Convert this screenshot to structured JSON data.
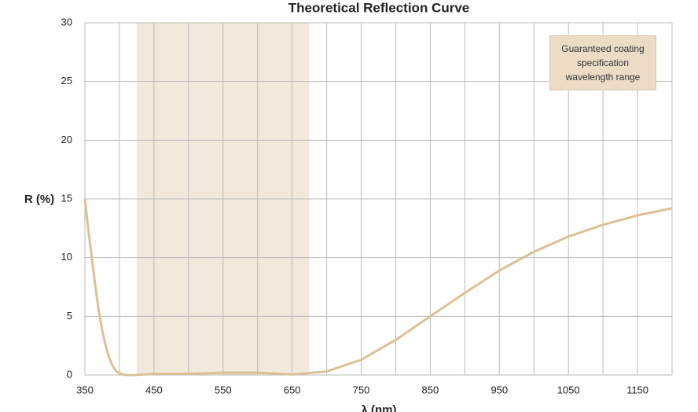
{
  "chart_data": {
    "type": "line",
    "title": "Theoretical Reflection Curve",
    "xlabel": "λ (nm)",
    "ylabel": "R (%)",
    "x": [
      350,
      355,
      360,
      365,
      370,
      375,
      380,
      385,
      390,
      395,
      400,
      410,
      420,
      450,
      500,
      550,
      600,
      650,
      700,
      750,
      800,
      850,
      900,
      950,
      1000,
      1050,
      1100,
      1150,
      1200
    ],
    "series": [
      {
        "color": "#dcc197",
        "values": [
          15,
          12.3,
          10,
          7.6,
          5.5,
          3.8,
          2.5,
          1.5,
          0.8,
          0.35,
          0.15,
          0,
          0,
          0.1,
          0.1,
          0.2,
          0.2,
          0.05,
          0.3,
          1.3,
          3,
          5,
          7,
          8.9,
          10.5,
          11.8,
          12.8,
          13.6,
          14.2
        ]
      }
    ],
    "band": {
      "from": 425,
      "to": 675,
      "color": "#f3e8dc",
      "label": "Guaranteed coating specification wavelength range"
    },
    "xlim": [
      350,
      1200
    ],
    "ylim": [
      0,
      30
    ],
    "xticks": [
      350,
      450,
      550,
      650,
      750,
      850,
      950,
      1050,
      1150
    ],
    "x_minor_ticks": [
      400,
      500,
      600,
      700,
      800,
      900,
      1000,
      1100,
      1200
    ],
    "yticks": [
      0,
      5,
      10,
      15,
      20,
      25,
      30
    ],
    "grid": true
  }
}
